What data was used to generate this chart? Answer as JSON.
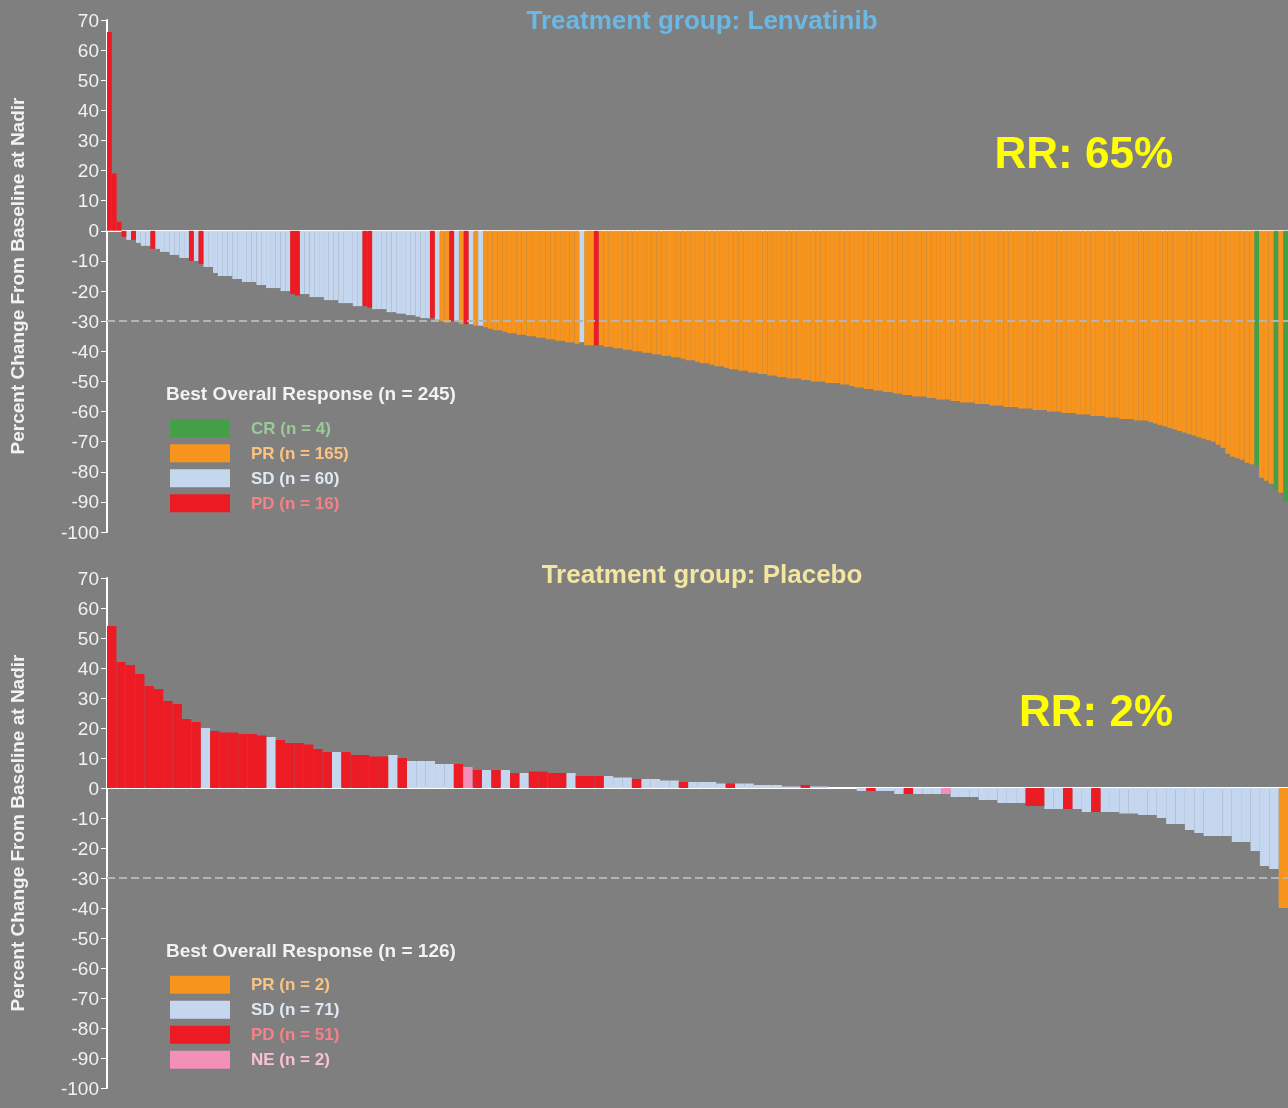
{
  "chart_data": [
    {
      "type": "bar",
      "title": "Treatment group: Lenvatinib",
      "ylabel": "Percent Change From Baseline at Nadir",
      "legend_title": "Best Overall Response (n = 245)",
      "annotations": [
        "RR: 65%"
      ],
      "ylim": [
        -100,
        70
      ],
      "yticks": [
        70,
        60,
        50,
        40,
        30,
        20,
        10,
        0,
        -10,
        -20,
        -30,
        -40,
        -50,
        -60,
        -70,
        -80,
        -90,
        -100
      ],
      "tick_labels": "y",
      "legend": "bottom left",
      "ref_lines": [
        {
          "axis": "y",
          "value": -30,
          "color": "#b4b4b4",
          "line_style": "dashed"
        }
      ],
      "categories": [
        null,
        null,
        null,
        null,
        null,
        null,
        null,
        null,
        null,
        null,
        null,
        null,
        null,
        null,
        null,
        null,
        null,
        null,
        null,
        null,
        null,
        null,
        null,
        null,
        null,
        null,
        null,
        null,
        null,
        null,
        null,
        null,
        null,
        null,
        null,
        null,
        null,
        null,
        null,
        null,
        null,
        null,
        null,
        null,
        null,
        null,
        null,
        null,
        null,
        null,
        null,
        null,
        null,
        null,
        null,
        null,
        null,
        null,
        null,
        null,
        null,
        null,
        null,
        null,
        null,
        null,
        null,
        null,
        null,
        null,
        null,
        null,
        null,
        null,
        null,
        null,
        null,
        null,
        null,
        null,
        null,
        null,
        null,
        null,
        null,
        null,
        null,
        null,
        null,
        null,
        null,
        null,
        null,
        null,
        null,
        null,
        null,
        null,
        null,
        null,
        null,
        null,
        null,
        null,
        null,
        null,
        null,
        null,
        null,
        null,
        null,
        null,
        null,
        null,
        null,
        null,
        null,
        null,
        null,
        null,
        null,
        null,
        null,
        null,
        null,
        null,
        null,
        null,
        null,
        null,
        null,
        null,
        null,
        null,
        null,
        null,
        null,
        null,
        null,
        null,
        null,
        null,
        null,
        null,
        null,
        null,
        null,
        null,
        null,
        null,
        null,
        null,
        null,
        null,
        null,
        null,
        null,
        null,
        null,
        null,
        null,
        null,
        null,
        null,
        null,
        null,
        null,
        null,
        null,
        null,
        null,
        null,
        null,
        null,
        null,
        null,
        null,
        null,
        null,
        null,
        null,
        null,
        null,
        null,
        null,
        null,
        null,
        null,
        null,
        null,
        null,
        null,
        null,
        null,
        null,
        null,
        null,
        null,
        null,
        null,
        null,
        null,
        null,
        null,
        null,
        null,
        null,
        null,
        null,
        null,
        null,
        null,
        null,
        null,
        null,
        null,
        null,
        null,
        null,
        null,
        null,
        null,
        null,
        null,
        null,
        null,
        null,
        null,
        null,
        null,
        null,
        null,
        null,
        null,
        null,
        null,
        null,
        null,
        null,
        null,
        null,
        null,
        null,
        null,
        null
      ],
      "series": [
        {
          "name": "CR (n = 4)",
          "color": "#43a047",
          "values": [
            null,
            null,
            null,
            null,
            null,
            null,
            null,
            null,
            null,
            null,
            null,
            null,
            null,
            null,
            null,
            null,
            null,
            null,
            null,
            null,
            null,
            null,
            null,
            null,
            null,
            null,
            null,
            null,
            null,
            null,
            null,
            null,
            null,
            null,
            null,
            null,
            null,
            null,
            null,
            null,
            null,
            null,
            null,
            null,
            null,
            null,
            null,
            null,
            null,
            null,
            null,
            null,
            null,
            null,
            null,
            null,
            null,
            null,
            null,
            null,
            null,
            null,
            null,
            null,
            null,
            null,
            null,
            null,
            null,
            null,
            null,
            null,
            null,
            null,
            null,
            null,
            null,
            null,
            null,
            null,
            null,
            null,
            null,
            null,
            null,
            null,
            null,
            null,
            null,
            null,
            null,
            null,
            null,
            null,
            null,
            null,
            null,
            null,
            null,
            null,
            null,
            null,
            null,
            null,
            null,
            null,
            null,
            null,
            null,
            null,
            null,
            null,
            null,
            null,
            null,
            null,
            null,
            null,
            null,
            null,
            null,
            null,
            null,
            null,
            null,
            null,
            null,
            null,
            null,
            null,
            null,
            null,
            null,
            null,
            null,
            null,
            null,
            null,
            null,
            null,
            null,
            null,
            null,
            null,
            null,
            null,
            null,
            null,
            null,
            null,
            null,
            null,
            null,
            null,
            null,
            null,
            null,
            null,
            null,
            null,
            null,
            null,
            null,
            null,
            null,
            null,
            null,
            null,
            null,
            null,
            null,
            null,
            null,
            null,
            null,
            null,
            null,
            null,
            null,
            null,
            null,
            null,
            null,
            null,
            null,
            null,
            null,
            null,
            null,
            null,
            null,
            null,
            null,
            null,
            null,
            null,
            null,
            null,
            null,
            null,
            null,
            null,
            null,
            null,
            null,
            null,
            null,
            null,
            null,
            null,
            null,
            null,
            null,
            null,
            null,
            null,
            null,
            null,
            null,
            null,
            null,
            null,
            null,
            null,
            null,
            null,
            null,
            null,
            null,
            null,
            null,
            null,
            null,
            null,
            null,
            null,
            null,
            null,
            -78,
            null,
            null,
            null,
            -86,
            null,
            -90
          ]
        },
        {
          "name": "PR (n = 165)",
          "color": "#f7941d",
          "values": [
            null,
            null,
            null,
            null,
            null,
            null,
            null,
            null,
            null,
            null,
            null,
            null,
            null,
            null,
            null,
            null,
            null,
            null,
            null,
            null,
            null,
            null,
            null,
            null,
            null,
            null,
            null,
            null,
            null,
            null,
            null,
            null,
            null,
            null,
            null,
            null,
            null,
            null,
            null,
            null,
            null,
            null,
            null,
            null,
            null,
            null,
            null,
            null,
            null,
            null,
            null,
            null,
            null,
            null,
            null,
            null,
            null,
            null,
            null,
            null,
            null,
            null,
            null,
            null,
            null,
            null,
            null,
            null,
            null,
            -30,
            -30.5,
            null,
            null,
            -31,
            null,
            null,
            -31.5,
            null,
            -32,
            -32.5,
            -33,
            -33,
            -33.5,
            -34,
            -34,
            -34.5,
            -34.5,
            -35,
            -35,
            -35.5,
            -35.5,
            -36,
            -36,
            -36.5,
            -36.5,
            -37,
            -37,
            -37.5,
            null,
            -38,
            -38,
            null,
            -38,
            -38.5,
            -38.5,
            -39,
            -39,
            -39.5,
            -39.5,
            -40,
            -40,
            -40.5,
            -40.5,
            -41,
            -41,
            -41.5,
            -41.5,
            -42,
            -42,
            -42.5,
            -43,
            -43,
            -43.5,
            -44,
            -44,
            -44.5,
            -45,
            -45,
            -45.5,
            -46,
            -46,
            -46.5,
            -46.5,
            -47,
            -47,
            -47.5,
            -47.5,
            -48,
            -48,
            -48.5,
            -48.5,
            -49,
            -49,
            -49,
            -49.5,
            -49.5,
            -50,
            -50,
            -50,
            -50.5,
            -50.5,
            -50.5,
            -51,
            -51,
            -51.5,
            -52,
            -52,
            -52.5,
            -52.5,
            -53,
            -53,
            -53.5,
            -53.5,
            -54,
            -54,
            -54.5,
            -54.5,
            -55,
            -55,
            -55,
            -55.5,
            -55.5,
            -56,
            -56,
            -56,
            -56.5,
            -56.5,
            -57,
            -57,
            -57,
            -57.5,
            -57.5,
            -57.5,
            -58,
            -58,
            -58,
            -58.5,
            -58.5,
            -58.5,
            -59,
            -59,
            -59,
            -59.5,
            -59.5,
            -59.5,
            -60,
            -60,
            -60,
            -60.5,
            -60.5,
            -60.5,
            -61,
            -61,
            -61,
            -61.5,
            -61.5,
            -61.5,
            -62,
            -62,
            -62,
            -62.5,
            -62.5,
            -62.5,
            -63,
            -63,
            -63,
            -63.5,
            -64,
            -64.5,
            -65,
            -65.5,
            -66,
            -66.5,
            -67,
            -67.5,
            -68,
            -68.5,
            -69,
            -69.5,
            -70,
            -71,
            -72,
            -74,
            -75,
            -75.5,
            -76,
            -77,
            -77.5,
            null,
            -82,
            -83,
            -84,
            null,
            -87,
            null
          ]
        },
        {
          "name": "SD (n = 60)",
          "color": "#c5d7ee",
          "values": [
            null,
            null,
            null,
            null,
            -3,
            null,
            -4,
            -5,
            -5,
            null,
            -6,
            -7,
            -7,
            -8,
            -8,
            -9,
            -9,
            null,
            -10,
            null,
            -12,
            -12,
            -14,
            -15,
            -15,
            -15,
            -16,
            -16,
            -17,
            -17,
            -17,
            -18,
            -18,
            -19,
            -19,
            -19,
            -20,
            -20,
            null,
            null,
            -21,
            -21,
            -22,
            -22,
            -22,
            -23,
            -23,
            -23,
            -24,
            -24,
            -24,
            -25,
            -25,
            null,
            null,
            -26,
            -26,
            -26,
            -27,
            -27,
            -27.5,
            -27.5,
            -28,
            -28,
            -28.5,
            -29,
            -29,
            null,
            -29.5,
            null,
            null,
            null,
            -30,
            null,
            null,
            -31,
            null,
            -31.5,
            null,
            null,
            null,
            null,
            null,
            null,
            null,
            null,
            null,
            null,
            null,
            null,
            null,
            null,
            null,
            null,
            null,
            null,
            null,
            null,
            -37,
            null,
            null,
            null,
            null,
            null,
            null,
            null,
            null,
            null,
            null,
            null,
            null,
            null,
            null,
            null,
            null,
            null,
            null,
            null,
            null,
            null,
            null,
            null,
            null,
            null,
            null,
            null,
            null,
            null,
            null,
            null,
            null,
            null,
            null,
            null,
            null,
            null,
            null,
            null,
            null,
            null,
            null,
            null,
            null,
            null,
            null,
            null,
            null,
            null,
            null,
            null,
            null,
            null,
            null,
            null,
            null,
            null,
            null,
            null,
            null,
            null,
            null,
            null,
            null,
            null,
            null,
            null,
            null,
            null,
            null,
            null,
            null,
            null,
            null,
            null,
            null,
            null,
            null,
            null,
            null,
            null,
            null,
            null,
            null,
            null,
            null,
            null,
            null,
            null,
            null,
            null,
            null,
            null,
            null,
            null,
            null,
            null,
            null,
            null,
            null,
            null,
            null,
            null,
            null,
            null,
            null,
            null,
            null,
            null,
            null,
            null,
            null,
            null,
            null,
            null,
            null,
            null,
            null,
            null,
            null,
            null,
            null,
            null,
            null,
            null,
            null,
            null,
            null,
            null,
            null,
            null,
            null,
            null,
            null,
            null,
            null,
            null,
            null,
            null,
            null,
            null,
            null,
            null,
            null,
            null,
            null
          ]
        },
        {
          "name": "PD (n = 16)",
          "color": "#ed1c24",
          "values": [
            66,
            19,
            3,
            -2,
            null,
            -3,
            null,
            null,
            null,
            -6,
            null,
            null,
            null,
            null,
            null,
            null,
            null,
            -10,
            null,
            -11,
            null,
            null,
            null,
            null,
            null,
            null,
            null,
            null,
            null,
            null,
            null,
            null,
            null,
            null,
            null,
            null,
            null,
            null,
            -21,
            -21.5,
            null,
            null,
            null,
            null,
            null,
            null,
            null,
            null,
            null,
            null,
            null,
            null,
            null,
            -25,
            -25.5,
            null,
            null,
            null,
            null,
            null,
            null,
            null,
            null,
            null,
            null,
            null,
            null,
            -29,
            null,
            null,
            null,
            -30,
            null,
            null,
            -31,
            null,
            null,
            null,
            null,
            null,
            null,
            null,
            null,
            null,
            null,
            null,
            null,
            null,
            null,
            null,
            null,
            null,
            null,
            null,
            null,
            null,
            null,
            null,
            null,
            null,
            null,
            -38,
            null,
            null,
            null,
            null,
            null,
            null,
            null,
            null,
            null,
            null,
            null,
            null,
            null,
            null,
            null,
            null,
            null,
            null,
            null,
            null,
            null,
            null,
            null,
            null,
            null,
            null,
            null,
            null,
            null,
            null,
            null,
            null,
            null,
            null,
            null,
            null,
            null,
            null,
            null,
            null,
            null,
            null,
            null,
            null,
            null,
            null,
            null,
            null,
            null,
            null,
            null,
            null,
            null,
            null,
            null,
            null,
            null,
            null,
            null,
            null,
            null,
            null,
            null,
            null,
            null,
            null,
            null,
            null,
            null,
            null,
            null,
            null,
            null,
            null,
            null,
            null,
            null,
            null,
            null,
            null,
            null,
            null,
            null,
            null,
            null,
            null,
            null,
            null,
            null,
            null,
            null,
            null,
            null,
            null,
            null,
            null,
            null,
            null,
            null,
            null,
            null,
            null,
            null,
            null,
            null,
            null,
            null,
            null,
            null,
            null,
            null,
            null,
            null,
            null,
            null,
            null,
            null,
            null,
            null,
            null,
            null,
            null,
            null,
            null,
            null,
            null,
            null,
            null,
            null,
            null,
            null,
            null,
            null,
            null,
            null,
            null,
            null,
            null,
            null,
            null,
            null,
            null,
            null
          ]
        }
      ]
    },
    {
      "type": "bar",
      "title": "Treatment group: Placebo",
      "ylabel": "Percent Change From Baseline at Nadir",
      "legend_title": "Best Overall Response (n = 126)",
      "annotations": [
        "RR: 2%"
      ],
      "ylim": [
        -100,
        70
      ],
      "yticks": [
        70,
        60,
        50,
        40,
        30,
        20,
        10,
        0,
        -10,
        -20,
        -30,
        -40,
        -50,
        -60,
        -70,
        -80,
        -90,
        -100
      ],
      "tick_labels": "y",
      "legend": "bottom left",
      "ref_lines": [
        {
          "axis": "y",
          "value": -30,
          "color": "#b4b4b4",
          "line_style": "dashed"
        }
      ],
      "categories": [
        null,
        null,
        null,
        null,
        null,
        null,
        null,
        null,
        null,
        null,
        null,
        null,
        null,
        null,
        null,
        null,
        null,
        null,
        null,
        null,
        null,
        null,
        null,
        null,
        null,
        null,
        null,
        null,
        null,
        null,
        null,
        null,
        null,
        null,
        null,
        null,
        null,
        null,
        null,
        null,
        null,
        null,
        null,
        null,
        null,
        null,
        null,
        null,
        null,
        null,
        null,
        null,
        null,
        null,
        null,
        null,
        null,
        null,
        null,
        null,
        null,
        null,
        null,
        null,
        null,
        null,
        null,
        null,
        null,
        null,
        null,
        null,
        null,
        null,
        null,
        null,
        null,
        null,
        null,
        null,
        null,
        null,
        null,
        null,
        null,
        null,
        null,
        null,
        null,
        null,
        null,
        null,
        null,
        null,
        null,
        null,
        null,
        null,
        null,
        null,
        null,
        null,
        null,
        null,
        null,
        null,
        null,
        null,
        null,
        null,
        null,
        null,
        null,
        null,
        null,
        null,
        null,
        null,
        null,
        null,
        null,
        null,
        null,
        null,
        null,
        null
      ],
      "series": [
        {
          "name": "PR (n = 2)",
          "color": "#f7941d",
          "values": [
            null,
            null,
            null,
            null,
            null,
            null,
            null,
            null,
            null,
            null,
            null,
            null,
            null,
            null,
            null,
            null,
            null,
            null,
            null,
            null,
            null,
            null,
            null,
            null,
            null,
            null,
            null,
            null,
            null,
            null,
            null,
            null,
            null,
            null,
            null,
            null,
            null,
            null,
            null,
            null,
            null,
            null,
            null,
            null,
            null,
            null,
            null,
            null,
            null,
            null,
            null,
            null,
            null,
            null,
            null,
            null,
            null,
            null,
            null,
            null,
            null,
            null,
            null,
            null,
            null,
            null,
            null,
            null,
            null,
            null,
            null,
            null,
            null,
            null,
            null,
            null,
            null,
            null,
            null,
            null,
            null,
            null,
            null,
            null,
            null,
            null,
            null,
            null,
            null,
            null,
            null,
            null,
            null,
            null,
            null,
            null,
            null,
            null,
            null,
            null,
            null,
            null,
            null,
            null,
            null,
            null,
            null,
            null,
            null,
            null,
            null,
            null,
            null,
            null,
            null,
            null,
            null,
            null,
            null,
            null,
            null,
            null,
            null,
            null,
            null,
            -40
          ]
        },
        {
          "name": "SD (n = 71)",
          "color": "#c5d7ee",
          "values": [
            null,
            null,
            null,
            null,
            null,
            null,
            null,
            null,
            null,
            null,
            20,
            null,
            null,
            null,
            null,
            null,
            null,
            17,
            null,
            null,
            null,
            null,
            null,
            null,
            12,
            null,
            null,
            null,
            null,
            null,
            11,
            null,
            9,
            9,
            9,
            8,
            8,
            null,
            null,
            null,
            6,
            null,
            6,
            null,
            5,
            null,
            null,
            null,
            null,
            5,
            null,
            null,
            null,
            4,
            3.5,
            3.5,
            null,
            3,
            3,
            2.5,
            2.5,
            null,
            2,
            2,
            2,
            1.5,
            null,
            1.5,
            1.5,
            1,
            1,
            1,
            0.5,
            0.5,
            null,
            0.5,
            0.5,
            0,
            0,
            0,
            -1,
            null,
            -1,
            -1,
            -2,
            null,
            -2,
            -2,
            -2,
            null,
            -3,
            -3,
            -3,
            -4,
            -4,
            -5,
            -5,
            -5,
            null,
            null,
            -7,
            -7,
            null,
            -7,
            -8,
            null,
            -8,
            -8,
            -8.5,
            -8.5,
            -9,
            -9,
            -10,
            -12,
            -12,
            -14,
            -15,
            -16,
            -16,
            -16,
            -18,
            -18,
            -21,
            -26,
            -27,
            null
          ]
        },
        {
          "name": "PD (n = 51)",
          "color": "#ed1c24",
          "values": [
            54,
            42,
            41,
            38,
            34,
            33,
            29,
            28,
            23,
            22,
            null,
            19,
            18.5,
            18.5,
            18,
            18,
            17.5,
            null,
            16,
            15,
            15,
            14.5,
            13,
            12,
            null,
            12,
            11,
            11,
            10.5,
            10.5,
            null,
            10,
            null,
            null,
            null,
            null,
            null,
            8,
            null,
            6,
            null,
            6,
            null,
            5,
            null,
            5.5,
            5.5,
            5,
            5,
            null,
            4,
            4,
            4,
            null,
            null,
            null,
            3,
            null,
            null,
            null,
            null,
            2,
            null,
            null,
            null,
            null,
            1.5,
            null,
            null,
            null,
            null,
            null,
            null,
            null,
            1,
            null,
            null,
            null,
            null,
            null,
            null,
            -1,
            null,
            null,
            null,
            -2,
            null,
            null,
            null,
            null,
            null,
            null,
            null,
            null,
            null,
            null,
            null,
            null,
            -6,
            -6,
            null,
            null,
            -7,
            null,
            null,
            -8,
            null,
            null,
            null,
            null,
            null,
            null,
            null,
            null,
            null,
            null,
            null,
            null,
            null,
            null,
            null,
            null,
            null,
            null,
            null,
            null
          ]
        },
        {
          "name": "NE (n = 2)",
          "color": "#f48fb8",
          "values": [
            null,
            null,
            null,
            null,
            null,
            null,
            null,
            null,
            null,
            null,
            null,
            null,
            null,
            null,
            null,
            null,
            null,
            null,
            null,
            null,
            null,
            null,
            null,
            null,
            null,
            null,
            null,
            null,
            null,
            null,
            null,
            null,
            null,
            null,
            null,
            null,
            null,
            null,
            7,
            null,
            null,
            null,
            null,
            null,
            null,
            null,
            null,
            null,
            null,
            null,
            null,
            null,
            null,
            null,
            null,
            null,
            null,
            null,
            null,
            null,
            null,
            null,
            null,
            null,
            null,
            null,
            null,
            null,
            null,
            null,
            null,
            null,
            null,
            null,
            null,
            null,
            null,
            null,
            null,
            null,
            null,
            null,
            null,
            null,
            null,
            null,
            null,
            null,
            null,
            -2,
            null,
            null,
            null,
            null,
            null,
            null,
            null,
            null,
            null,
            null,
            null,
            null,
            null,
            null,
            null,
            null,
            null,
            null,
            null,
            null,
            null,
            null,
            null,
            null,
            null,
            null,
            null,
            null,
            null,
            null,
            null,
            null,
            null,
            null,
            null,
            null
          ]
        }
      ]
    }
  ]
}
